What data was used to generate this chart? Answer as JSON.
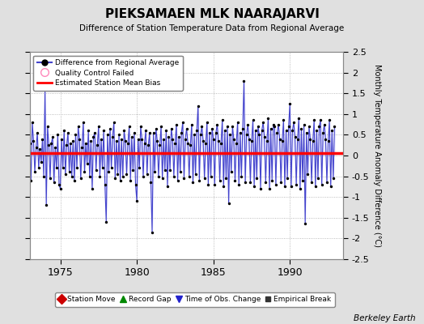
{
  "title": "PIEKSAMAEN MLK NAARAJARVI",
  "subtitle": "Difference of Station Temperature Data from Regional Average",
  "ylabel": "Monthly Temperature Anomaly Difference (°C)",
  "xlim": [
    1973.0,
    1993.5
  ],
  "ylim": [
    -2.5,
    2.5
  ],
  "yticks": [
    -2.5,
    -2,
    -1.5,
    -1,
    -0.5,
    0,
    0.5,
    1,
    1.5,
    2,
    2.5
  ],
  "ytick_labels": [
    "-2.5",
    "-2",
    "-1.5",
    "-1",
    "-0.5",
    "0",
    "0.5",
    "1",
    "1.5",
    "2",
    "2.5"
  ],
  "xticks": [
    1975,
    1980,
    1985,
    1990
  ],
  "bias_value": 0.05,
  "background_color": "#e0e0e0",
  "plot_bg_color": "#ffffff",
  "line_color": "#4444cc",
  "line_fill_color": "#aaaaff",
  "marker_color": "#000000",
  "bias_color": "#ff0000",
  "berkeley_earth_text": "Berkeley Earth",
  "start_year": 1973.0,
  "data_values": [
    0.3,
    -0.6,
    0.8,
    0.35,
    -0.4,
    0.2,
    0.55,
    -0.3,
    0.15,
    -0.15,
    0.4,
    -0.5,
    1.6,
    -1.2,
    0.7,
    0.25,
    -0.55,
    0.3,
    0.45,
    -0.65,
    0.2,
    -0.3,
    0.5,
    -0.7,
    -0.8,
    0.4,
    -0.3,
    0.6,
    -0.45,
    0.25,
    0.55,
    -0.4,
    0.3,
    -0.5,
    0.35,
    -0.6,
    0.5,
    -0.3,
    0.7,
    0.4,
    -0.55,
    0.2,
    0.8,
    -0.4,
    0.3,
    -0.2,
    0.6,
    -0.5,
    0.35,
    -0.8,
    0.45,
    0.55,
    -0.35,
    0.25,
    0.7,
    -0.5,
    0.4,
    -0.3,
    0.6,
    -0.7,
    -1.6,
    0.5,
    -0.4,
    0.65,
    -0.3,
    0.45,
    0.8,
    -0.55,
    0.35,
    -0.45,
    0.5,
    -0.6,
    0.4,
    -0.5,
    0.6,
    0.35,
    -0.45,
    0.3,
    0.7,
    -0.6,
    0.45,
    -0.35,
    0.55,
    -0.7,
    -1.1,
    0.4,
    -0.3,
    0.7,
    0.4,
    -0.5,
    0.3,
    0.6,
    -0.45,
    0.25,
    0.55,
    -0.65,
    -1.85,
    0.55,
    -0.4,
    0.65,
    0.35,
    -0.5,
    0.25,
    0.7,
    -0.55,
    0.4,
    -0.35,
    0.6,
    -0.75,
    0.45,
    -0.35,
    0.65,
    0.4,
    -0.5,
    0.3,
    0.75,
    -0.6,
    0.45,
    -0.4,
    0.55,
    0.8,
    -0.55,
    0.4,
    0.65,
    0.3,
    -0.5,
    0.25,
    0.75,
    -0.65,
    0.5,
    -0.45,
    0.6,
    1.2,
    -0.6,
    0.5,
    0.7,
    0.35,
    -0.55,
    0.3,
    0.8,
    -0.7,
    0.55,
    -0.5,
    0.65,
    0.4,
    -0.7,
    0.55,
    0.75,
    0.35,
    -0.6,
    0.3,
    0.85,
    -0.75,
    0.6,
    -0.55,
    0.7,
    -1.15,
    0.5,
    -0.4,
    0.7,
    0.4,
    -0.6,
    0.3,
    0.8,
    -0.7,
    0.55,
    -0.5,
    0.65,
    1.8,
    -0.65,
    0.5,
    0.75,
    0.4,
    -0.65,
    0.35,
    0.85,
    -0.75,
    0.6,
    -0.55,
    0.7,
    0.5,
    -0.8,
    0.6,
    0.8,
    0.45,
    -0.65,
    0.35,
    0.9,
    -0.8,
    0.65,
    -0.6,
    0.75,
    0.7,
    -0.7,
    0.55,
    0.75,
    0.4,
    -0.65,
    0.35,
    0.85,
    -0.75,
    0.6,
    -0.55,
    0.7,
    1.25,
    -0.75,
    0.6,
    0.8,
    0.45,
    -0.7,
    0.4,
    0.9,
    -0.8,
    0.65,
    -0.6,
    0.75,
    -1.65,
    0.55,
    -0.45,
    0.7,
    0.4,
    -0.65,
    0.35,
    0.85,
    -0.75,
    0.6,
    -0.55,
    0.7,
    0.85,
    -0.7,
    0.55,
    0.75,
    0.4,
    -0.65,
    0.35,
    0.85,
    -0.75,
    0.6,
    -0.55,
    0.7
  ]
}
